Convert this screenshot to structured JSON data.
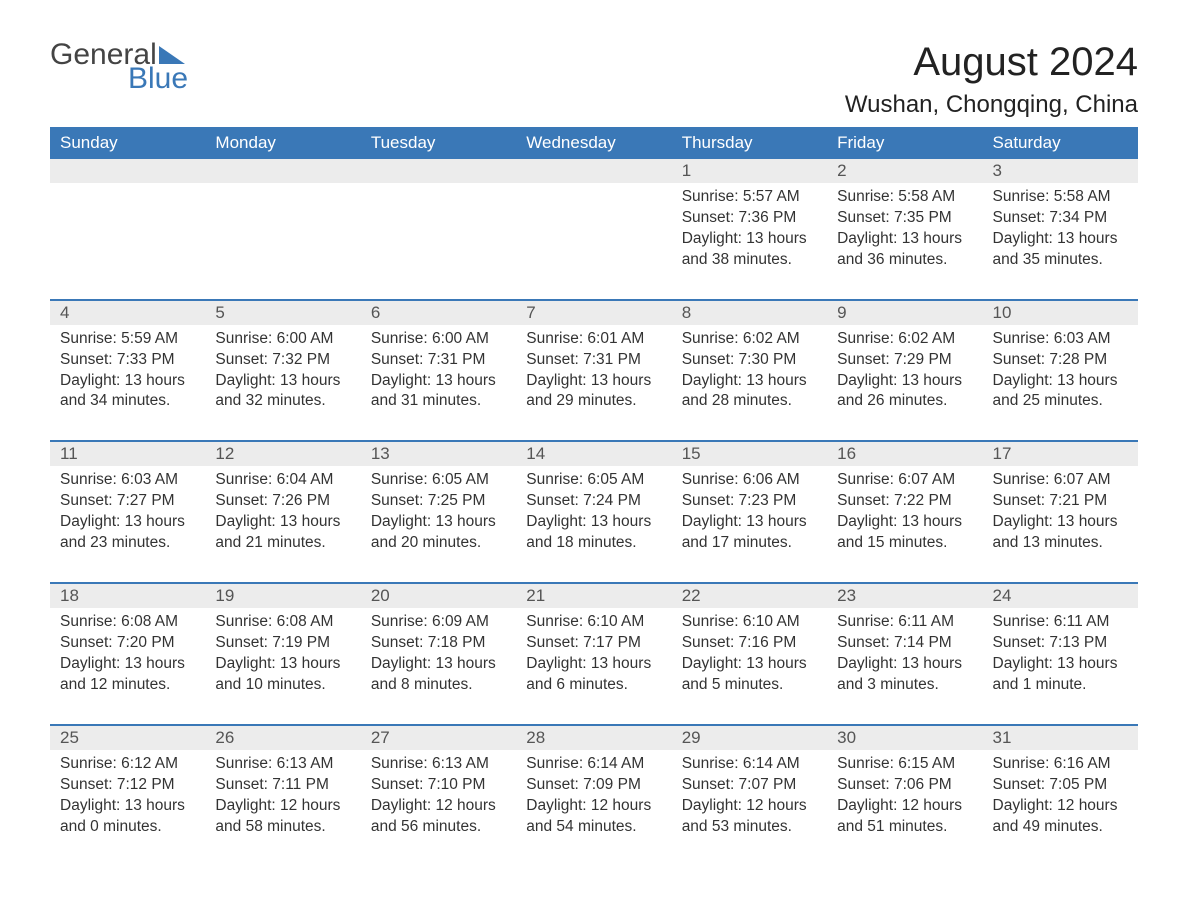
{
  "logo": {
    "text1": "General",
    "text2": "Blue"
  },
  "title": "August 2024",
  "location": "Wushan, Chongqing, China",
  "colors": {
    "header_bg": "#3a78b7",
    "header_text": "#ffffff",
    "daynum_bg": "#ececec",
    "row_border": "#3a78b7",
    "body_text": "#333333",
    "page_bg": "#ffffff"
  },
  "typography": {
    "title_fontsize": 40,
    "location_fontsize": 24,
    "header_fontsize": 17,
    "cell_fontsize": 15.5
  },
  "weekdays": [
    "Sunday",
    "Monday",
    "Tuesday",
    "Wednesday",
    "Thursday",
    "Friday",
    "Saturday"
  ],
  "weeks": [
    [
      {
        "day": "",
        "sunrise": "",
        "sunset": "",
        "daylight": ""
      },
      {
        "day": "",
        "sunrise": "",
        "sunset": "",
        "daylight": ""
      },
      {
        "day": "",
        "sunrise": "",
        "sunset": "",
        "daylight": ""
      },
      {
        "day": "",
        "sunrise": "",
        "sunset": "",
        "daylight": ""
      },
      {
        "day": "1",
        "sunrise": "Sunrise: 5:57 AM",
        "sunset": "Sunset: 7:36 PM",
        "daylight": "Daylight: 13 hours and 38 minutes."
      },
      {
        "day": "2",
        "sunrise": "Sunrise: 5:58 AM",
        "sunset": "Sunset: 7:35 PM",
        "daylight": "Daylight: 13 hours and 36 minutes."
      },
      {
        "day": "3",
        "sunrise": "Sunrise: 5:58 AM",
        "sunset": "Sunset: 7:34 PM",
        "daylight": "Daylight: 13 hours and 35 minutes."
      }
    ],
    [
      {
        "day": "4",
        "sunrise": "Sunrise: 5:59 AM",
        "sunset": "Sunset: 7:33 PM",
        "daylight": "Daylight: 13 hours and 34 minutes."
      },
      {
        "day": "5",
        "sunrise": "Sunrise: 6:00 AM",
        "sunset": "Sunset: 7:32 PM",
        "daylight": "Daylight: 13 hours and 32 minutes."
      },
      {
        "day": "6",
        "sunrise": "Sunrise: 6:00 AM",
        "sunset": "Sunset: 7:31 PM",
        "daylight": "Daylight: 13 hours and 31 minutes."
      },
      {
        "day": "7",
        "sunrise": "Sunrise: 6:01 AM",
        "sunset": "Sunset: 7:31 PM",
        "daylight": "Daylight: 13 hours and 29 minutes."
      },
      {
        "day": "8",
        "sunrise": "Sunrise: 6:02 AM",
        "sunset": "Sunset: 7:30 PM",
        "daylight": "Daylight: 13 hours and 28 minutes."
      },
      {
        "day": "9",
        "sunrise": "Sunrise: 6:02 AM",
        "sunset": "Sunset: 7:29 PM",
        "daylight": "Daylight: 13 hours and 26 minutes."
      },
      {
        "day": "10",
        "sunrise": "Sunrise: 6:03 AM",
        "sunset": "Sunset: 7:28 PM",
        "daylight": "Daylight: 13 hours and 25 minutes."
      }
    ],
    [
      {
        "day": "11",
        "sunrise": "Sunrise: 6:03 AM",
        "sunset": "Sunset: 7:27 PM",
        "daylight": "Daylight: 13 hours and 23 minutes."
      },
      {
        "day": "12",
        "sunrise": "Sunrise: 6:04 AM",
        "sunset": "Sunset: 7:26 PM",
        "daylight": "Daylight: 13 hours and 21 minutes."
      },
      {
        "day": "13",
        "sunrise": "Sunrise: 6:05 AM",
        "sunset": "Sunset: 7:25 PM",
        "daylight": "Daylight: 13 hours and 20 minutes."
      },
      {
        "day": "14",
        "sunrise": "Sunrise: 6:05 AM",
        "sunset": "Sunset: 7:24 PM",
        "daylight": "Daylight: 13 hours and 18 minutes."
      },
      {
        "day": "15",
        "sunrise": "Sunrise: 6:06 AM",
        "sunset": "Sunset: 7:23 PM",
        "daylight": "Daylight: 13 hours and 17 minutes."
      },
      {
        "day": "16",
        "sunrise": "Sunrise: 6:07 AM",
        "sunset": "Sunset: 7:22 PM",
        "daylight": "Daylight: 13 hours and 15 minutes."
      },
      {
        "day": "17",
        "sunrise": "Sunrise: 6:07 AM",
        "sunset": "Sunset: 7:21 PM",
        "daylight": "Daylight: 13 hours and 13 minutes."
      }
    ],
    [
      {
        "day": "18",
        "sunrise": "Sunrise: 6:08 AM",
        "sunset": "Sunset: 7:20 PM",
        "daylight": "Daylight: 13 hours and 12 minutes."
      },
      {
        "day": "19",
        "sunrise": "Sunrise: 6:08 AM",
        "sunset": "Sunset: 7:19 PM",
        "daylight": "Daylight: 13 hours and 10 minutes."
      },
      {
        "day": "20",
        "sunrise": "Sunrise: 6:09 AM",
        "sunset": "Sunset: 7:18 PM",
        "daylight": "Daylight: 13 hours and 8 minutes."
      },
      {
        "day": "21",
        "sunrise": "Sunrise: 6:10 AM",
        "sunset": "Sunset: 7:17 PM",
        "daylight": "Daylight: 13 hours and 6 minutes."
      },
      {
        "day": "22",
        "sunrise": "Sunrise: 6:10 AM",
        "sunset": "Sunset: 7:16 PM",
        "daylight": "Daylight: 13 hours and 5 minutes."
      },
      {
        "day": "23",
        "sunrise": "Sunrise: 6:11 AM",
        "sunset": "Sunset: 7:14 PM",
        "daylight": "Daylight: 13 hours and 3 minutes."
      },
      {
        "day": "24",
        "sunrise": "Sunrise: 6:11 AM",
        "sunset": "Sunset: 7:13 PM",
        "daylight": "Daylight: 13 hours and 1 minute."
      }
    ],
    [
      {
        "day": "25",
        "sunrise": "Sunrise: 6:12 AM",
        "sunset": "Sunset: 7:12 PM",
        "daylight": "Daylight: 13 hours and 0 minutes."
      },
      {
        "day": "26",
        "sunrise": "Sunrise: 6:13 AM",
        "sunset": "Sunset: 7:11 PM",
        "daylight": "Daylight: 12 hours and 58 minutes."
      },
      {
        "day": "27",
        "sunrise": "Sunrise: 6:13 AM",
        "sunset": "Sunset: 7:10 PM",
        "daylight": "Daylight: 12 hours and 56 minutes."
      },
      {
        "day": "28",
        "sunrise": "Sunrise: 6:14 AM",
        "sunset": "Sunset: 7:09 PM",
        "daylight": "Daylight: 12 hours and 54 minutes."
      },
      {
        "day": "29",
        "sunrise": "Sunrise: 6:14 AM",
        "sunset": "Sunset: 7:07 PM",
        "daylight": "Daylight: 12 hours and 53 minutes."
      },
      {
        "day": "30",
        "sunrise": "Sunrise: 6:15 AM",
        "sunset": "Sunset: 7:06 PM",
        "daylight": "Daylight: 12 hours and 51 minutes."
      },
      {
        "day": "31",
        "sunrise": "Sunrise: 6:16 AM",
        "sunset": "Sunset: 7:05 PM",
        "daylight": "Daylight: 12 hours and 49 minutes."
      }
    ]
  ]
}
